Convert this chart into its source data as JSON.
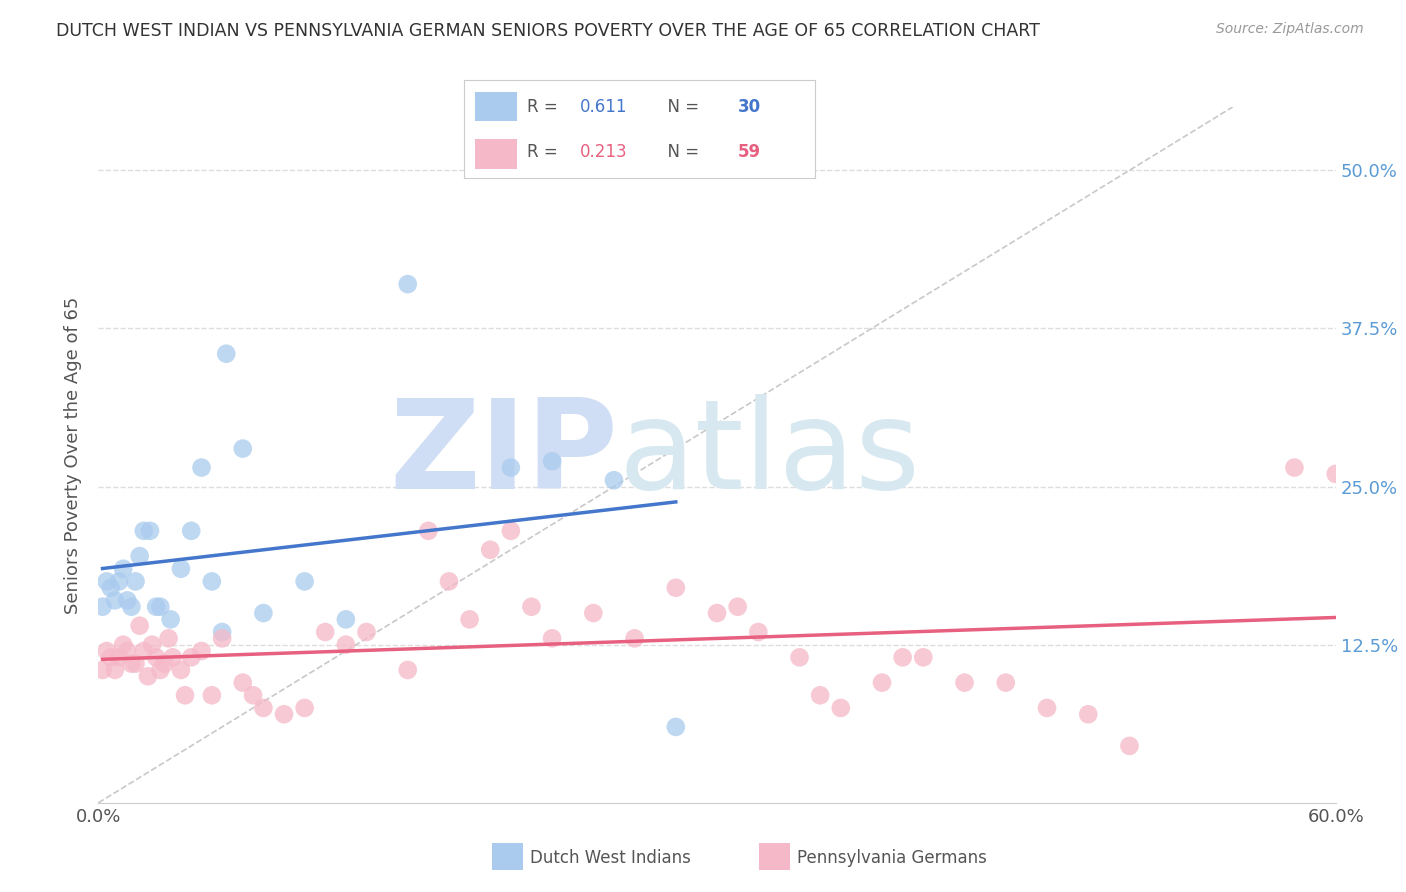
{
  "title": "DUTCH WEST INDIAN VS PENNSYLVANIA GERMAN SENIORS POVERTY OVER THE AGE OF 65 CORRELATION CHART",
  "source": "Source: ZipAtlas.com",
  "ylabel": "Seniors Poverty Over the Age of 65",
  "xlim": [
    0.0,
    0.6
  ],
  "ylim": [
    0.0,
    0.55
  ],
  "blue_color": "#AACBEE",
  "pink_color": "#F5B8C8",
  "blue_line_color": "#4477CC",
  "pink_line_color": "#E86080",
  "diag_color": "#BBBBBB",
  "blue_R": 0.611,
  "blue_N": 30,
  "pink_R": 0.213,
  "pink_N": 59,
  "blue_scatter_x": [
    0.002,
    0.004,
    0.006,
    0.008,
    0.01,
    0.012,
    0.014,
    0.016,
    0.018,
    0.02,
    0.022,
    0.025,
    0.028,
    0.03,
    0.035,
    0.04,
    0.045,
    0.05,
    0.055,
    0.06,
    0.07,
    0.08,
    0.1,
    0.12,
    0.15,
    0.2,
    0.22,
    0.25,
    0.28,
    0.062
  ],
  "blue_scatter_y": [
    0.155,
    0.175,
    0.17,
    0.16,
    0.175,
    0.185,
    0.16,
    0.155,
    0.175,
    0.195,
    0.215,
    0.215,
    0.155,
    0.155,
    0.145,
    0.185,
    0.215,
    0.265,
    0.175,
    0.135,
    0.28,
    0.15,
    0.175,
    0.145,
    0.41,
    0.265,
    0.27,
    0.255,
    0.06,
    0.355
  ],
  "pink_scatter_x": [
    0.002,
    0.004,
    0.006,
    0.008,
    0.01,
    0.012,
    0.014,
    0.016,
    0.018,
    0.02,
    0.022,
    0.024,
    0.026,
    0.028,
    0.03,
    0.032,
    0.034,
    0.036,
    0.04,
    0.042,
    0.045,
    0.05,
    0.055,
    0.06,
    0.07,
    0.075,
    0.08,
    0.09,
    0.1,
    0.11,
    0.12,
    0.13,
    0.15,
    0.16,
    0.17,
    0.18,
    0.19,
    0.2,
    0.21,
    0.22,
    0.24,
    0.26,
    0.28,
    0.3,
    0.31,
    0.32,
    0.34,
    0.35,
    0.36,
    0.38,
    0.39,
    0.4,
    0.42,
    0.44,
    0.46,
    0.48,
    0.5,
    0.58,
    0.6
  ],
  "pink_scatter_y": [
    0.105,
    0.12,
    0.115,
    0.105,
    0.115,
    0.125,
    0.12,
    0.11,
    0.11,
    0.14,
    0.12,
    0.1,
    0.125,
    0.115,
    0.105,
    0.11,
    0.13,
    0.115,
    0.105,
    0.085,
    0.115,
    0.12,
    0.085,
    0.13,
    0.095,
    0.085,
    0.075,
    0.07,
    0.075,
    0.135,
    0.125,
    0.135,
    0.105,
    0.215,
    0.175,
    0.145,
    0.2,
    0.215,
    0.155,
    0.13,
    0.15,
    0.13,
    0.17,
    0.15,
    0.155,
    0.135,
    0.115,
    0.085,
    0.075,
    0.095,
    0.115,
    0.115,
    0.095,
    0.095,
    0.075,
    0.07,
    0.045,
    0.265,
    0.26
  ],
  "watermark_zip": "ZIP",
  "watermark_atlas": "atlas",
  "watermark_zip_color": "#D0DEF5",
  "watermark_atlas_color": "#D8E8F0",
  "background_color": "#FFFFFF",
  "grid_color": "#DDDDDD",
  "title_color": "#333333",
  "axis_label_color": "#555555",
  "right_tick_color": "#5B9BD5",
  "bottom_legend_labels": [
    "Dutch West Indians",
    "Pennsylvania Germans"
  ]
}
